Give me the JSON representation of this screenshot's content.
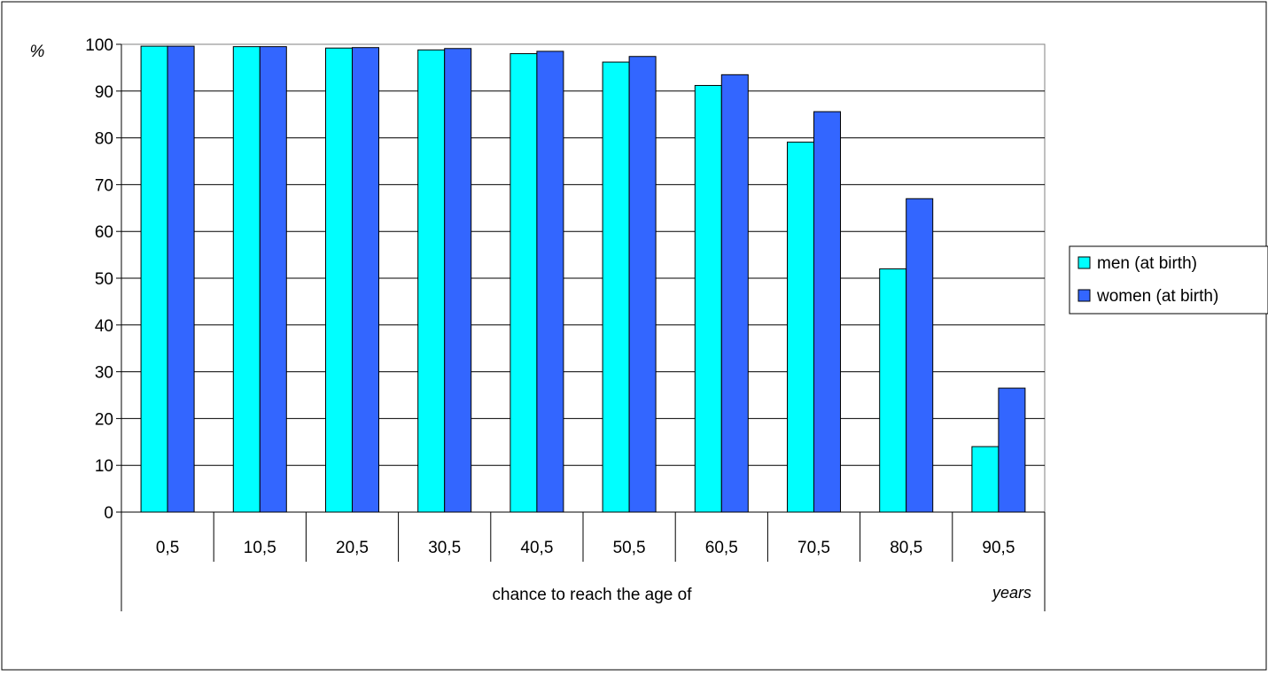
{
  "chart_data": {
    "type": "bar",
    "y_unit_label": "%",
    "xlabel": "chance to reach the age of",
    "x_unit_label": "years",
    "categories": [
      "0,5",
      "10,5",
      "20,5",
      "30,5",
      "40,5",
      "50,5",
      "60,5",
      "70,5",
      "80,5",
      "90,5"
    ],
    "series": [
      {
        "name": "men (at birth)",
        "color": "#00FFFF",
        "values": [
          99.6,
          99.5,
          99.2,
          98.8,
          98.0,
          96.2,
          91.2,
          79.1,
          52.0,
          14.0
        ]
      },
      {
        "name": "women (at birth)",
        "color": "#3366FF",
        "values": [
          99.6,
          99.5,
          99.3,
          99.1,
          98.5,
          97.4,
          93.5,
          85.6,
          67.0,
          26.5
        ]
      }
    ],
    "yticks": [
      "0",
      "10",
      "20",
      "30",
      "40",
      "50",
      "60",
      "70",
      "80",
      "90",
      "100"
    ],
    "ylim": [
      0,
      100
    ],
    "grid": true,
    "legend_position": "right"
  }
}
